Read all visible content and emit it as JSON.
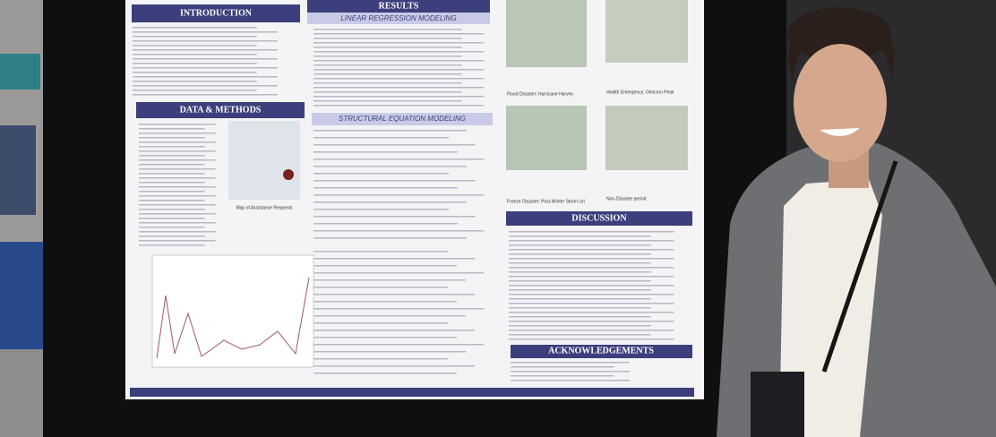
{
  "poster": {
    "sections": {
      "introduction": "INTRODUCTION",
      "results": "RESULTS",
      "linear_regression": "LINEAR REGRESSION MODELING",
      "data_methods": "DATA & METHODS",
      "sem": "STRUCTURAL EQUATION MODELING",
      "discussion": "DISCUSSION",
      "acknowledgements": "ACKNOWLEDGEMENTS"
    },
    "map_captions": [
      "Flood Disaster: Hurricane Harvey",
      "Health Emergency: Omicron Peak",
      "Freeze Disaster: Post-Winter Storm Uri",
      "Non-Disaster period"
    ],
    "figure_caption": "Map of Assistance Requests"
  }
}
